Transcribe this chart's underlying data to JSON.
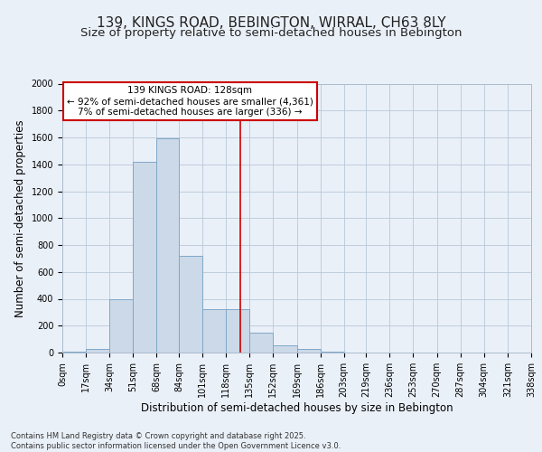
{
  "title_line1": "139, KINGS ROAD, BEBINGTON, WIRRAL, CH63 8LY",
  "title_line2": "Size of property relative to semi-detached houses in Bebington",
  "xlabel": "Distribution of semi-detached houses by size in Bebington",
  "ylabel": "Number of semi-detached properties",
  "bin_edges": [
    0,
    17,
    34,
    51,
    68,
    84,
    101,
    118,
    135,
    152,
    169,
    186,
    203,
    219,
    236,
    253,
    270,
    287,
    304,
    321,
    338
  ],
  "bin_counts": [
    5,
    30,
    400,
    1420,
    1590,
    720,
    325,
    325,
    150,
    55,
    30,
    5,
    3,
    2,
    1,
    0,
    0,
    0,
    0,
    0
  ],
  "property_size": 128,
  "bar_facecolor": "#ccd9e8",
  "bar_edgecolor": "#7fa8c8",
  "vline_color": "#cc0000",
  "grid_color": "#b8c8d8",
  "background_color": "#eaf0f8",
  "annotation_text": "139 KINGS ROAD: 128sqm\n← 92% of semi-detached houses are smaller (4,361)\n7% of semi-detached houses are larger (336) →",
  "annotation_box_color": "#ffffff",
  "annotation_box_edgecolor": "#cc0000",
  "ylim": [
    0,
    2000
  ],
  "yticks": [
    0,
    200,
    400,
    600,
    800,
    1000,
    1200,
    1400,
    1600,
    1800,
    2000
  ],
  "footnote": "Contains HM Land Registry data © Crown copyright and database right 2025.\nContains public sector information licensed under the Open Government Licence v3.0.",
  "title_fontsize": 11,
  "subtitle_fontsize": 9.5,
  "tick_fontsize": 7,
  "label_fontsize": 8.5,
  "annot_fontsize": 7.5,
  "footnote_fontsize": 6
}
